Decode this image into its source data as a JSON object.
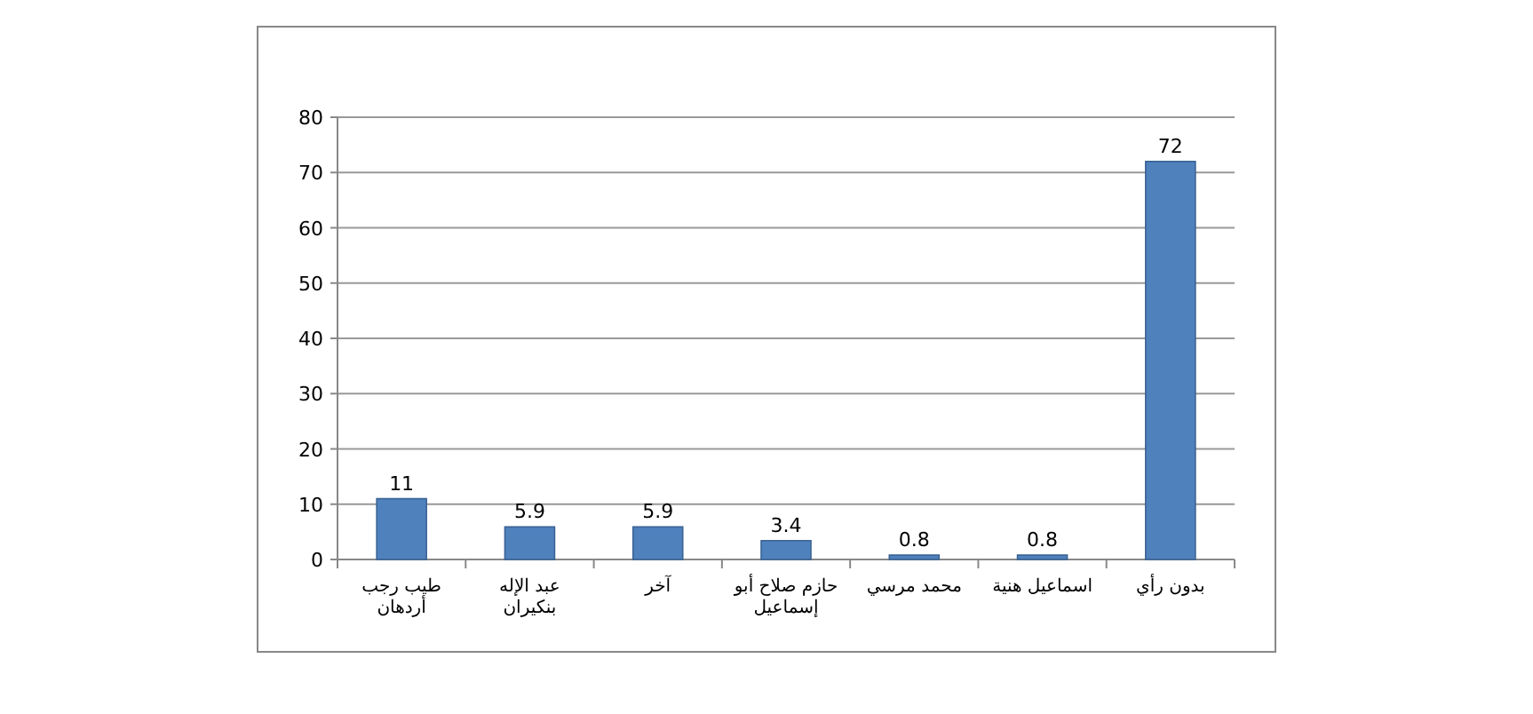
{
  "chart_data": {
    "type": "bar",
    "categories": [
      "طيب رجب أردهان",
      "عبد الإله بنكيران",
      "آخر",
      "حازم صلاح أبو إسماعيل",
      "محمد مرسي",
      "اسماعيل هنية",
      "بدون رأي"
    ],
    "values": [
      11,
      5.9,
      5.9,
      3.4,
      0.8,
      0.8,
      72
    ],
    "color": "#4f81bd",
    "ylim": [
      0,
      80
    ],
    "yticks": [
      0,
      10,
      20,
      30,
      40,
      50,
      60,
      70,
      80
    ],
    "grid": "y",
    "data_labels": true
  }
}
